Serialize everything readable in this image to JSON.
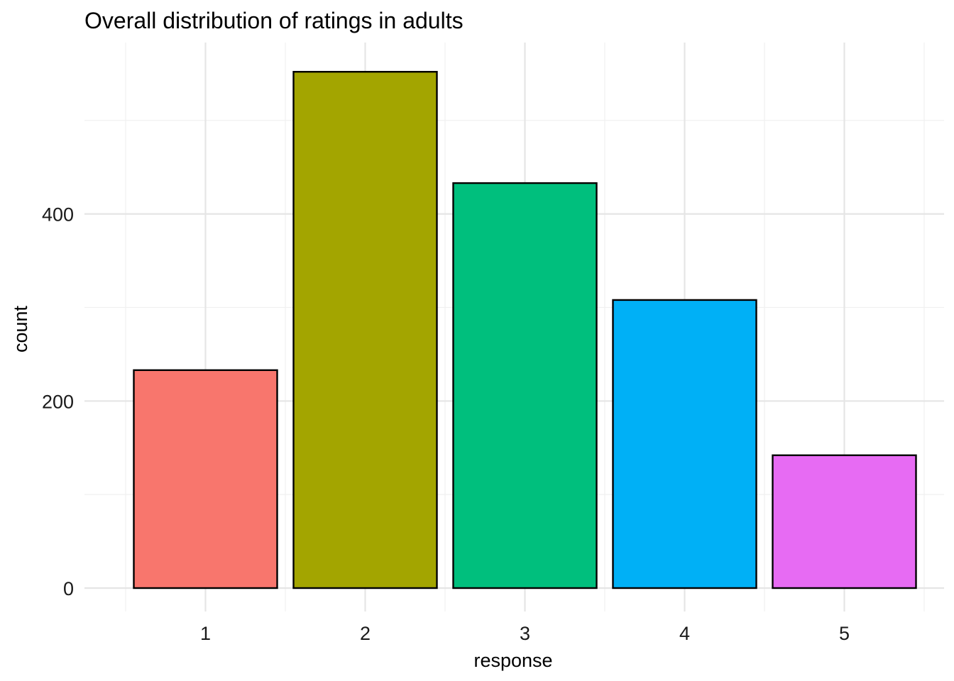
{
  "chart_data": {
    "type": "bar",
    "title": "Overall distribution of ratings in adults",
    "xlabel": "response",
    "ylabel": "count",
    "categories": [
      "1",
      "2",
      "3",
      "4",
      "5"
    ],
    "values": [
      233,
      552,
      433,
      308,
      142
    ],
    "colors": [
      "#F8766D",
      "#A3A500",
      "#00BF7D",
      "#00B0F6",
      "#E76BF3"
    ],
    "bar_outline": "#000000",
    "ylim": [
      0,
      580
    ],
    "yticks": [
      0,
      200,
      400
    ],
    "ytick_labels": [
      "0",
      "200",
      "400"
    ],
    "grid": true,
    "legend": "none"
  }
}
